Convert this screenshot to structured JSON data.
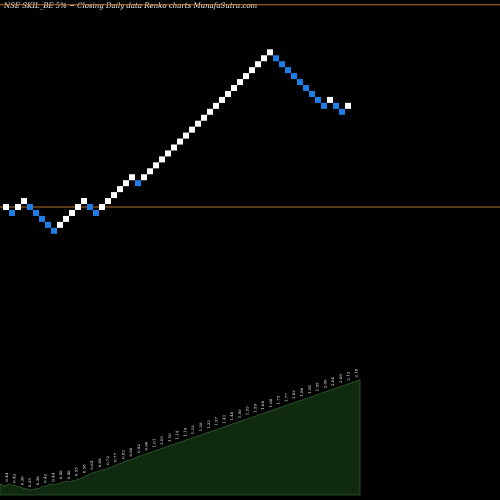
{
  "chart_data": {
    "type": "renko",
    "title": "NSE SKIL_BE 5% ~  Closing Daily data  Renko  charts MunafaSutra.com",
    "colors": {
      "up": "#ffffff",
      "down": "#1e7ee8",
      "background": "#000000",
      "level_line": "#b8742e",
      "volume_fill": "#0f2a0f",
      "volume_edge": "#2f5a2f"
    },
    "levels": [
      1.11,
      0.77
    ],
    "bricks": [
      {
        "d": "up",
        "v": 0.77
      },
      {
        "d": "down",
        "v": 0.76
      },
      {
        "d": "up",
        "v": 0.77
      },
      {
        "d": "up",
        "v": 0.78
      },
      {
        "d": "down",
        "v": 0.77
      },
      {
        "d": "down",
        "v": 0.76
      },
      {
        "d": "down",
        "v": 0.75
      },
      {
        "d": "down",
        "v": 0.74
      },
      {
        "d": "down",
        "v": 0.73
      },
      {
        "d": "up",
        "v": 0.74
      },
      {
        "d": "up",
        "v": 0.75
      },
      {
        "d": "up",
        "v": 0.76
      },
      {
        "d": "up",
        "v": 0.77
      },
      {
        "d": "up",
        "v": 0.78
      },
      {
        "d": "down",
        "v": 0.77
      },
      {
        "d": "down",
        "v": 0.76
      },
      {
        "d": "up",
        "v": 0.77
      },
      {
        "d": "up",
        "v": 0.78
      },
      {
        "d": "up",
        "v": 0.79
      },
      {
        "d": "up",
        "v": 0.8
      },
      {
        "d": "up",
        "v": 0.81
      },
      {
        "d": "up",
        "v": 0.82
      },
      {
        "d": "down",
        "v": 0.81
      },
      {
        "d": "up",
        "v": 0.82
      },
      {
        "d": "up",
        "v": 0.83
      },
      {
        "d": "up",
        "v": 0.84
      },
      {
        "d": "up",
        "v": 0.85
      },
      {
        "d": "up",
        "v": 0.86
      },
      {
        "d": "up",
        "v": 0.87
      },
      {
        "d": "up",
        "v": 0.88
      },
      {
        "d": "up",
        "v": 0.89
      },
      {
        "d": "up",
        "v": 0.9
      },
      {
        "d": "up",
        "v": 0.91
      },
      {
        "d": "up",
        "v": 0.92
      },
      {
        "d": "up",
        "v": 0.93
      },
      {
        "d": "up",
        "v": 0.94
      },
      {
        "d": "up",
        "v": 0.95
      },
      {
        "d": "up",
        "v": 0.96
      },
      {
        "d": "up",
        "v": 0.97
      },
      {
        "d": "up",
        "v": 0.98
      },
      {
        "d": "up",
        "v": 0.99
      },
      {
        "d": "up",
        "v": 1.0
      },
      {
        "d": "up",
        "v": 1.01
      },
      {
        "d": "up",
        "v": 1.02
      },
      {
        "d": "up",
        "v": 1.03
      },
      {
        "d": "down",
        "v": 1.02
      },
      {
        "d": "down",
        "v": 1.01
      },
      {
        "d": "down",
        "v": 1.0
      },
      {
        "d": "down",
        "v": 0.99
      },
      {
        "d": "down",
        "v": 0.98
      },
      {
        "d": "down",
        "v": 0.97
      },
      {
        "d": "down",
        "v": 0.96
      },
      {
        "d": "down",
        "v": 0.95
      },
      {
        "d": "down",
        "v": 0.94
      },
      {
        "d": "up",
        "v": 0.95
      },
      {
        "d": "down",
        "v": 0.94
      },
      {
        "d": "down",
        "v": 0.93
      },
      {
        "d": "up",
        "v": 0.94
      }
    ],
    "price_labels": [
      "0.45",
      "0.43",
      "0.42",
      "0.44",
      "0.45",
      "0.43",
      "0.42",
      "0.41",
      "0.40",
      "0.38",
      "0.37",
      "0.36",
      "0.35",
      "0.36",
      "0.37",
      "0.38",
      "0.40",
      "0.41",
      "0.42",
      "0.44",
      "0.45",
      "0.44",
      "0.45",
      "0.46",
      "0.48",
      "0.49",
      "0.50",
      "0.48",
      "0.50",
      "0.51",
      "0.53",
      "0.54",
      "0.56",
      "0.58",
      "0.60",
      "0.62",
      "0.64",
      "0.65",
      "0.66",
      "0.68",
      "0.69",
      "0.70",
      "0.72",
      "0.73",
      "0.75",
      "0.77",
      "0.79",
      "0.80",
      "0.82",
      "0.84",
      "0.85",
      "0.86",
      "0.88",
      "0.90",
      "0.92",
      "0.93",
      "0.95",
      "0.96",
      "0.98",
      "0.99",
      "1.01",
      "1.02",
      "1.04",
      "1.05",
      "1.07",
      "1.08",
      "1.10",
      "1.11",
      "1.13",
      "1.14",
      "1.16",
      "1.17",
      "1.19",
      "1.20",
      "1.22",
      "1.23",
      "1.25",
      "1.26",
      "1.28",
      "1.29",
      "1.31",
      "1.32",
      "1.34",
      "1.35",
      "1.37",
      "1.38",
      "1.40",
      "1.41",
      "1.43",
      "1.44",
      "1.46",
      "1.47",
      "1.49",
      "1.50",
      "1.52",
      "1.53",
      "1.55",
      "1.56",
      "1.58",
      "1.59",
      "1.61",
      "1.62",
      "1.64",
      "1.65",
      "1.67",
      "1.68",
      "1.70",
      "1.71",
      "1.73",
      "1.74",
      "1.76",
      "1.77",
      "1.79",
      "1.80",
      "1.82",
      "1.83",
      "1.85",
      "1.86",
      "1.88",
      "1.89",
      "1.91",
      "1.92",
      "1.94",
      "1.95",
      "1.97",
      "1.98",
      "2.00",
      "2.01",
      "2.03",
      "2.04",
      "2.06",
      "2.07",
      "2.09",
      "2.10",
      "2.12",
      "2.13",
      "2.15",
      "2.16",
      "2.18",
      "2.19"
    ]
  }
}
